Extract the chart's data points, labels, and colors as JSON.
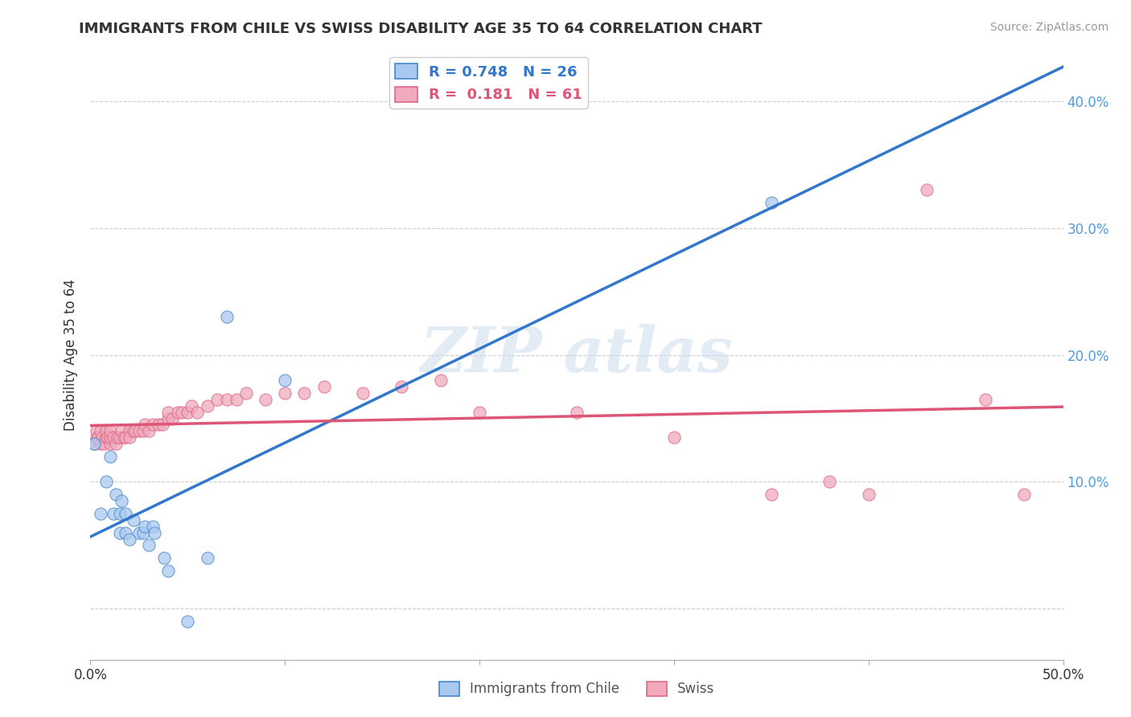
{
  "title": "IMMIGRANTS FROM CHILE VS SWISS DISABILITY AGE 35 TO 64 CORRELATION CHART",
  "source": "Source: ZipAtlas.com",
  "ylabel": "Disability Age 35 to 64",
  "xlim": [
    0.0,
    0.5
  ],
  "ylim": [
    -0.04,
    0.44
  ],
  "x_ticks": [
    0.0,
    0.1,
    0.2,
    0.3,
    0.4,
    0.5
  ],
  "x_tick_labels": [
    "0.0%",
    "",
    "",
    "",
    "",
    "50.0%"
  ],
  "y_ticks": [
    0.0,
    0.1,
    0.2,
    0.3,
    0.4
  ],
  "y_tick_labels_right": [
    "",
    "10.0%",
    "20.0%",
    "30.0%",
    "40.0%"
  ],
  "background_color": "#ffffff",
  "grid_color": "#cccccc",
  "chile_color": "#aac8f0",
  "swiss_color": "#f0aabb",
  "chile_edge_color": "#4488cc",
  "swiss_edge_color": "#dd6688",
  "chile_line_color": "#3377cc",
  "swiss_line_color": "#dd5577",
  "right_tick_color": "#5599dd",
  "legend_R_chile": "0.748",
  "legend_N_chile": "26",
  "legend_R_swiss": "0.181",
  "legend_N_swiss": "61",
  "chile_x": [
    0.002,
    0.005,
    0.008,
    0.01,
    0.012,
    0.013,
    0.015,
    0.015,
    0.016,
    0.018,
    0.018,
    0.02,
    0.022,
    0.025,
    0.027,
    0.028,
    0.03,
    0.032,
    0.033,
    0.038,
    0.04,
    0.05,
    0.06,
    0.07,
    0.1,
    0.35
  ],
  "chile_y": [
    0.13,
    0.075,
    0.1,
    0.12,
    0.075,
    0.09,
    0.06,
    0.075,
    0.085,
    0.06,
    0.075,
    0.055,
    0.07,
    0.06,
    0.06,
    0.065,
    0.05,
    0.065,
    0.06,
    0.04,
    0.03,
    -0.01,
    0.04,
    0.23,
    0.18,
    0.32
  ],
  "swiss_x": [
    0.002,
    0.003,
    0.003,
    0.004,
    0.005,
    0.005,
    0.006,
    0.007,
    0.008,
    0.008,
    0.009,
    0.01,
    0.01,
    0.01,
    0.012,
    0.013,
    0.014,
    0.015,
    0.016,
    0.017,
    0.018,
    0.02,
    0.02,
    0.022,
    0.023,
    0.025,
    0.027,
    0.028,
    0.03,
    0.032,
    0.035,
    0.037,
    0.04,
    0.04,
    0.042,
    0.045,
    0.047,
    0.05,
    0.052,
    0.055,
    0.06,
    0.065,
    0.07,
    0.075,
    0.08,
    0.09,
    0.1,
    0.11,
    0.12,
    0.14,
    0.16,
    0.18,
    0.2,
    0.25,
    0.3,
    0.35,
    0.38,
    0.4,
    0.43,
    0.46,
    0.48
  ],
  "swiss_y": [
    0.13,
    0.135,
    0.14,
    0.135,
    0.13,
    0.14,
    0.135,
    0.13,
    0.135,
    0.14,
    0.135,
    0.13,
    0.135,
    0.14,
    0.135,
    0.13,
    0.135,
    0.135,
    0.14,
    0.135,
    0.135,
    0.14,
    0.135,
    0.14,
    0.14,
    0.14,
    0.14,
    0.145,
    0.14,
    0.145,
    0.145,
    0.145,
    0.15,
    0.155,
    0.15,
    0.155,
    0.155,
    0.155,
    0.16,
    0.155,
    0.16,
    0.165,
    0.165,
    0.165,
    0.17,
    0.165,
    0.17,
    0.17,
    0.175,
    0.17,
    0.175,
    0.18,
    0.155,
    0.155,
    0.135,
    0.09,
    0.1,
    0.09,
    0.33,
    0.165,
    0.09
  ]
}
